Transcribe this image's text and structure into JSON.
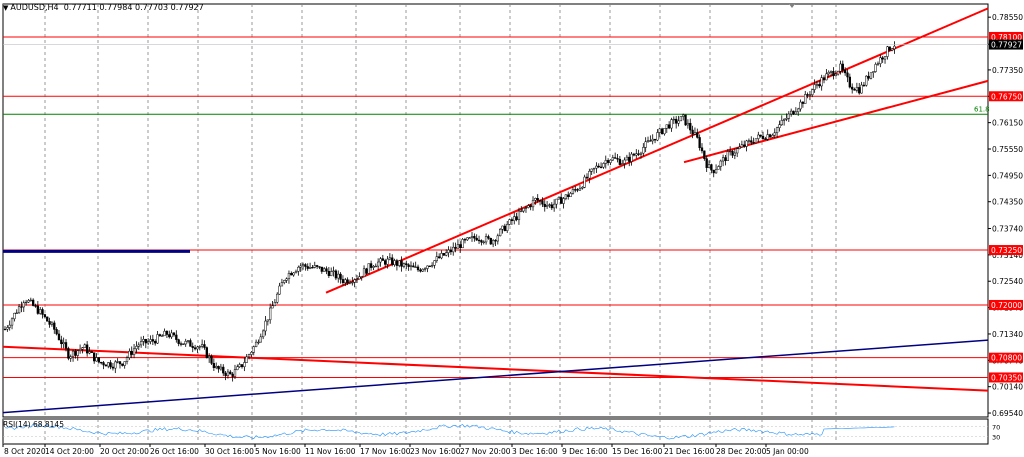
{
  "header": {
    "symbol": "AUDUSD,H4",
    "open": "0.77711",
    "high": "0.77984",
    "low": "0.77703",
    "close": "0.77927"
  },
  "rsi_label": "RSI(14) 68.8145",
  "fib_label": "61.8",
  "colors": {
    "candle": "#000000",
    "resistance": "#ff0000",
    "trendline": "#ff0000",
    "fib": "#008000",
    "blue_trend": "#000080",
    "rsi": "#1e90ff",
    "grid": "#808080"
  },
  "chart_data": {
    "type": "candlestick",
    "ylim": [
      0.6945,
      0.7885
    ],
    "y_ticks": [
      "0.78550",
      "0.77935",
      "0.77350",
      "0.76750",
      "0.76150",
      "0.75550",
      "0.74950",
      "0.74350",
      "0.73740",
      "0.73140",
      "0.72540",
      "0.71940",
      "0.71340",
      "0.70740",
      "0.70140",
      "0.69540"
    ],
    "x_labels": [
      "8 Oct 2020",
      "14 Oct 20:00",
      "20 Oct 20:00",
      "26 Oct 16:00",
      "30 Oct 16:00",
      "5 Nov 16:00",
      "11 Nov 16:00",
      "17 Nov 16:00",
      "23 Nov 16:00",
      "27 Nov 20:00",
      "3 Dec 16:00",
      "9 Dec 16:00",
      "15 Dec 16:00",
      "21 Dec 16:00",
      "28 Dec 20:00",
      "5 Jan 00:00"
    ],
    "horizontal_levels": [
      {
        "value": 0.781,
        "label": "0.78100",
        "color": "#ff0000"
      },
      {
        "value": 0.7675,
        "label": "0.76750",
        "color": "#ff0000"
      },
      {
        "value": 0.7325,
        "label": "0.73250",
        "color": "#ff0000"
      },
      {
        "value": 0.72,
        "label": "0.72000",
        "color": "#ff0000"
      },
      {
        "value": 0.708,
        "label": "0.70800",
        "color": "#ff0000"
      },
      {
        "value": 0.7035,
        "label": "0.70350",
        "color": "#ff0000"
      }
    ],
    "fib_level": {
      "value": 0.7634,
      "label": "61.8"
    },
    "current_price": {
      "value": 0.77927,
      "label": "0.77927"
    },
    "price_path": [
      [
        0,
        0.7145
      ],
      [
        0.02,
        0.7215
      ],
      [
        0.035,
        0.7185
      ],
      [
        0.05,
        0.7145
      ],
      [
        0.065,
        0.7085
      ],
      [
        0.08,
        0.7105
      ],
      [
        0.095,
        0.707
      ],
      [
        0.11,
        0.7065
      ],
      [
        0.12,
        0.707
      ],
      [
        0.135,
        0.711
      ],
      [
        0.15,
        0.7118
      ],
      [
        0.165,
        0.7135
      ],
      [
        0.18,
        0.7115
      ],
      [
        0.2,
        0.7105
      ],
      [
        0.215,
        0.7055
      ],
      [
        0.23,
        0.704
      ],
      [
        0.24,
        0.706
      ],
      [
        0.255,
        0.711
      ],
      [
        0.27,
        0.7185
      ],
      [
        0.285,
        0.7265
      ],
      [
        0.3,
        0.729
      ],
      [
        0.315,
        0.7285
      ],
      [
        0.33,
        0.7275
      ],
      [
        0.345,
        0.7255
      ],
      [
        0.36,
        0.7265
      ],
      [
        0.375,
        0.7295
      ],
      [
        0.39,
        0.73
      ],
      [
        0.405,
        0.729
      ],
      [
        0.42,
        0.728
      ],
      [
        0.435,
        0.7298
      ],
      [
        0.45,
        0.7318
      ],
      [
        0.465,
        0.734
      ],
      [
        0.48,
        0.7355
      ],
      [
        0.495,
        0.7345
      ],
      [
        0.51,
        0.738
      ],
      [
        0.525,
        0.741
      ],
      [
        0.54,
        0.744
      ],
      [
        0.555,
        0.7425
      ],
      [
        0.57,
        0.7445
      ],
      [
        0.585,
        0.747
      ],
      [
        0.6,
        0.751
      ],
      [
        0.615,
        0.7535
      ],
      [
        0.63,
        0.7525
      ],
      [
        0.645,
        0.755
      ],
      [
        0.66,
        0.758
      ],
      [
        0.675,
        0.761
      ],
      [
        0.69,
        0.7625
      ],
      [
        0.705,
        0.7575
      ],
      [
        0.715,
        0.7515
      ],
      [
        0.72,
        0.7505
      ],
      [
        0.735,
        0.754
      ],
      [
        0.75,
        0.756
      ],
      [
        0.765,
        0.758
      ],
      [
        0.78,
        0.759
      ],
      [
        0.795,
        0.7625
      ],
      [
        0.81,
        0.766
      ],
      [
        0.825,
        0.77
      ],
      [
        0.835,
        0.772
      ],
      [
        0.85,
        0.774
      ],
      [
        0.86,
        0.77
      ],
      [
        0.87,
        0.769
      ],
      [
        0.885,
        0.7745
      ],
      [
        0.9,
        0.7785
      ],
      [
        0.905,
        0.7793
      ]
    ],
    "trend_lines": [
      {
        "from": [
          "11 Nov",
          0.7228
        ],
        "to": [
          "9 Jan",
          0.7875
        ],
        "color": "#ff0000"
      },
      {
        "from": [
          "21 Dec",
          0.7525
        ],
        "to": [
          "9 Jan",
          0.771
        ],
        "color": "#ff0000"
      },
      {
        "from": [
          "8 Oct",
          0.7105
        ],
        "to": [
          "9 Jan",
          0.7005
        ],
        "color": "#ff0000"
      },
      {
        "from": [
          "8 Oct",
          0.6955
        ],
        "to": [
          "9 Jan",
          0.712
        ],
        "color": "#000080"
      }
    ],
    "blue_segment": {
      "from_x": "8 Oct",
      "to_x": "26 Oct",
      "value": 0.7322,
      "color": "#000080"
    },
    "rsi": {
      "value": 68.8145,
      "levels": [
        "70",
        "30"
      ]
    }
  }
}
